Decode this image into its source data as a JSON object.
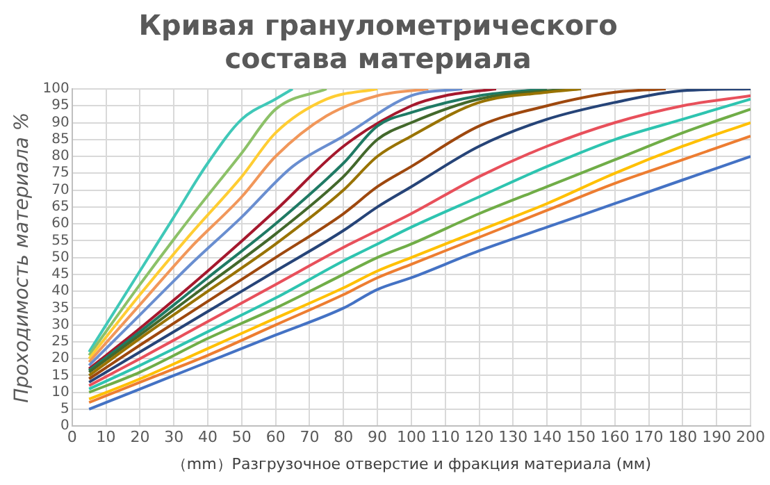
{
  "chart_data": {
    "type": "line",
    "title": "Кривая гранулометрического состава материала",
    "xlabel": "（mm）Разгрузочное отверстие и фракция материала (мм)",
    "ylabel": "Проходимость материала %",
    "xlim": [
      0,
      200
    ],
    "xticks": [
      0,
      10,
      20,
      30,
      40,
      50,
      60,
      70,
      80,
      90,
      100,
      110,
      120,
      130,
      140,
      150,
      160,
      170,
      180,
      190,
      200
    ],
    "ylim": [
      0,
      100
    ],
    "yticks": [
      0,
      5,
      10,
      15,
      20,
      25,
      30,
      35,
      40,
      45,
      50,
      55,
      60,
      65,
      70,
      75,
      80,
      85,
      90,
      95,
      100
    ],
    "grid": true,
    "legend": false,
    "marker": "none",
    "line_style": "solid",
    "series": [
      {
        "color": "#4472c4",
        "x": [
          5,
          20,
          40,
          60,
          80,
          90,
          100,
          120,
          140,
          160,
          180,
          200
        ],
        "values": [
          5,
          11,
          19,
          27,
          35,
          40.5,
          44,
          52,
          59,
          66,
          73,
          80
        ]
      },
      {
        "color": "#ed7d31",
        "x": [
          5,
          20,
          40,
          60,
          80,
          90,
          100,
          120,
          140,
          160,
          180,
          200
        ],
        "values": [
          7,
          13,
          21,
          30,
          39,
          44,
          48,
          56,
          64,
          72,
          79,
          86
        ]
      },
      {
        "color": "#ffc000",
        "x": [
          5,
          20,
          40,
          60,
          80,
          90,
          100,
          120,
          140,
          160,
          180,
          200
        ],
        "values": [
          8,
          14,
          23,
          32,
          41,
          46,
          50,
          58,
          66,
          75,
          83,
          90
        ]
      },
      {
        "color": "#70ad47",
        "x": [
          5,
          20,
          40,
          60,
          80,
          90,
          100,
          120,
          140,
          160,
          180,
          200
        ],
        "values": [
          10,
          16,
          26,
          35,
          45,
          50,
          54,
          63,
          71,
          79,
          87,
          94
        ]
      },
      {
        "color": "#2ec4b0",
        "x": [
          5,
          20,
          40,
          60,
          80,
          90,
          100,
          120,
          140,
          160,
          180,
          200
        ],
        "values": [
          11,
          18,
          28,
          38,
          49,
          54,
          59,
          68,
          77,
          85,
          91,
          97
        ]
      },
      {
        "color": "#e8505b",
        "x": [
          5,
          20,
          40,
          60,
          80,
          90,
          100,
          120,
          140,
          160,
          180,
          200
        ],
        "values": [
          12,
          20,
          31,
          42,
          53,
          58,
          63,
          74,
          83,
          90,
          95,
          98
        ]
      },
      {
        "color": "#264478",
        "x": [
          5,
          20,
          40,
          60,
          80,
          90,
          100,
          120,
          140,
          160,
          180,
          200
        ],
        "values": [
          13,
          22,
          34,
          46,
          58,
          65,
          71,
          83,
          91,
          96,
          99.5,
          100
        ]
      },
      {
        "color": "#9e480e",
        "x": [
          5,
          20,
          40,
          60,
          80,
          90,
          100,
          120,
          140,
          160,
          175
        ],
        "values": [
          14,
          24,
          37,
          50,
          63,
          71,
          77,
          89,
          95,
          99,
          100
        ]
      },
      {
        "color": "#997300",
        "x": [
          5,
          20,
          40,
          60,
          80,
          90,
          100,
          120,
          140,
          150
        ],
        "values": [
          15,
          26,
          40,
          54,
          70,
          80,
          86,
          96,
          99,
          100
        ]
      },
      {
        "color": "#43682b",
        "x": [
          5,
          20,
          40,
          60,
          80,
          90,
          100,
          120,
          146
        ],
        "values": [
          16,
          27,
          42,
          57,
          74,
          85,
          90,
          97,
          100
        ]
      },
      {
        "color": "#1f7a64",
        "x": [
          5,
          20,
          40,
          60,
          80,
          90,
          100,
          120,
          140
        ],
        "values": [
          16.5,
          28,
          44,
          60,
          78,
          89,
          93,
          98,
          100
        ]
      },
      {
        "color": "#a5182d",
        "x": [
          5,
          20,
          40,
          60,
          80,
          100,
          110,
          125
        ],
        "values": [
          17,
          29,
          46,
          64,
          83,
          95,
          98,
          100
        ]
      },
      {
        "color": "#698ed0",
        "x": [
          5,
          20,
          35,
          50,
          65,
          80,
          100,
          115
        ],
        "values": [
          18,
          33,
          48,
          62,
          77,
          86,
          98,
          100
        ]
      },
      {
        "color": "#f1975a",
        "x": [
          5,
          20,
          35,
          50,
          60,
          75,
          90,
          105
        ],
        "values": [
          19,
          36,
          53,
          68,
          80,
          92,
          98,
          100
        ]
      },
      {
        "color": "#ffcd33",
        "x": [
          5,
          20,
          35,
          50,
          60,
          75,
          90
        ],
        "values": [
          20,
          39,
          57,
          74,
          87,
          97,
          100
        ]
      },
      {
        "color": "#8cc168",
        "x": [
          5,
          20,
          35,
          50,
          60,
          75
        ],
        "values": [
          21,
          42,
          62,
          81,
          94,
          100
        ]
      },
      {
        "color": "#40c8b8",
        "x": [
          5,
          20,
          30,
          40,
          50,
          60,
          65
        ],
        "values": [
          22,
          46,
          62,
          78,
          91,
          97,
          100
        ]
      }
    ]
  }
}
